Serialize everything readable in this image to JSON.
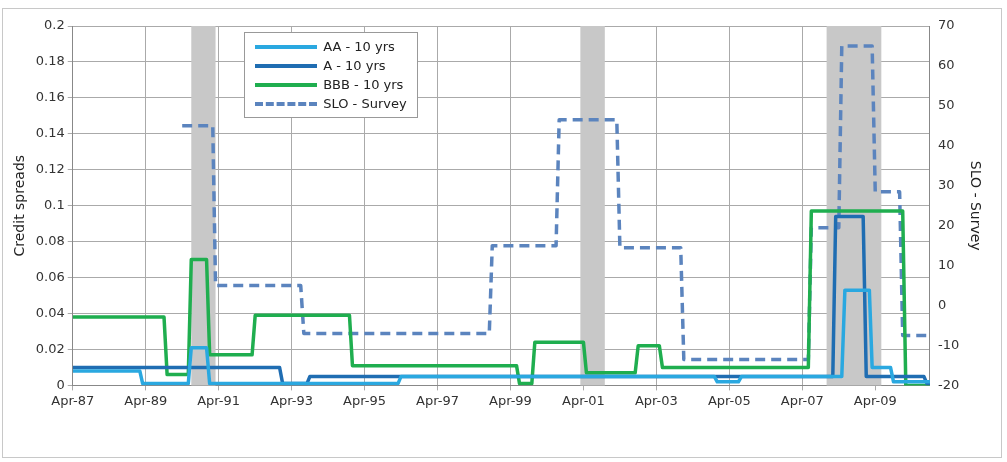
{
  "chart_data": {
    "type": "line",
    "ylabel": "Credit spreads",
    "y2label": "SLO - Survey",
    "xlim": [
      "1987-04",
      "2010-10"
    ],
    "xticks": [
      {
        "value": "1987-04",
        "label": "Apr-87"
      },
      {
        "value": "1989-04",
        "label": "Apr-89"
      },
      {
        "value": "1991-04",
        "label": "Apr-91"
      },
      {
        "value": "1993-04",
        "label": "Apr-93"
      },
      {
        "value": "1995-04",
        "label": "Apr-95"
      },
      {
        "value": "1997-04",
        "label": "Apr-97"
      },
      {
        "value": "1999-04",
        "label": "Apr-99"
      },
      {
        "value": "2001-04",
        "label": "Apr-01"
      },
      {
        "value": "2003-04",
        "label": "Apr-03"
      },
      {
        "value": "2005-04",
        "label": "Apr-05"
      },
      {
        "value": "2007-04",
        "label": "Apr-07"
      },
      {
        "value": "2009-04",
        "label": "Apr-09"
      }
    ],
    "ylim": [
      0,
      0.2
    ],
    "yticks": [
      0,
      0.02,
      0.04,
      0.06,
      0.08,
      0.1,
      0.12,
      0.14,
      0.16,
      0.18,
      0.2
    ],
    "y2lim": [
      -20,
      70
    ],
    "y2ticks": [
      -20,
      -10,
      0,
      10,
      20,
      30,
      40,
      50,
      60,
      70
    ],
    "grid": true,
    "legend": "top left",
    "marker": "none",
    "bands": [
      {
        "axis": "x",
        "from": "1990-07",
        "to": "1991-03",
        "color": "#c8c8c8"
      },
      {
        "axis": "x",
        "from": "2001-03",
        "to": "2001-11",
        "color": "#c8c8c8"
      },
      {
        "axis": "x",
        "from": "2007-12",
        "to": "2009-06",
        "color": "#c8c8c8"
      }
    ],
    "series": [
      {
        "name": "AA - 10 yrs",
        "color": "#2aa8e0",
        "line_style": "solid",
        "x": [
          "1987-04",
          "1989-02",
          "1989-03",
          "1990-06",
          "1990-07",
          "1990-12",
          "1991-01",
          "1996-03",
          "1996-04",
          "2004-11",
          "2004-12",
          "2005-07",
          "2005-08",
          "2008-05",
          "2008-06",
          "2009-02",
          "2009-03",
          "2009-09",
          "2009-10",
          "2010-10"
        ],
        "values": [
          0.008,
          0.008,
          0.001,
          0.001,
          0.021,
          0.021,
          0.001,
          0.001,
          0.005,
          0.005,
          0.002,
          0.002,
          0.005,
          0.005,
          0.053,
          0.053,
          0.01,
          0.01,
          0.002,
          0.002
        ]
      },
      {
        "name": "A - 10 yrs",
        "color": "#1f6db2",
        "line_style": "solid",
        "x": [
          "1987-04",
          "1992-12",
          "1993-01",
          "1993-09",
          "1993-10",
          "2008-02",
          "2008-03",
          "2008-12",
          "2009-01",
          "2010-08",
          "2010-09",
          "2010-10"
        ],
        "values": [
          0.01,
          0.01,
          0.001,
          0.001,
          0.005,
          0.005,
          0.094,
          0.094,
          0.005,
          0.005,
          0.001,
          0.001
        ]
      },
      {
        "name": "BBB - 10 yrs",
        "color": "#1fae4f",
        "line_style": "solid",
        "x": [
          "1987-04",
          "1989-10",
          "1989-11",
          "1990-06",
          "1990-07",
          "1990-12",
          "1991-01",
          "1992-03",
          "1992-04",
          "1994-11",
          "1994-12",
          "1999-06",
          "1999-07",
          "1999-11",
          "1999-12",
          "2001-04",
          "2001-05",
          "2002-09",
          "2002-10",
          "2003-05",
          "2003-06",
          "2007-06",
          "2007-07",
          "2010-01",
          "2010-02",
          "2010-10"
        ],
        "values": [
          0.038,
          0.038,
          0.006,
          0.006,
          0.07,
          0.07,
          0.017,
          0.017,
          0.039,
          0.039,
          0.011,
          0.011,
          0.001,
          0.001,
          0.024,
          0.024,
          0.007,
          0.007,
          0.022,
          0.022,
          0.01,
          0.01,
          0.097,
          0.097,
          0,
          0
        ]
      },
      {
        "name": "SLO - Survey",
        "color": "#5b84be",
        "line_style": "dashed",
        "axis": "y2",
        "x": [
          "1990-04",
          "1991-02",
          "1991-03",
          "1993-07",
          "1993-08",
          "1998-09",
          "1998-10",
          "2000-07",
          "2000-08",
          "2002-03",
          "2002-04",
          "2003-12",
          "2004-01",
          "2007-06",
          "2007-07",
          "2008-04",
          "2008-05",
          "2009-03",
          "2009-04",
          "2009-12",
          "2010-01",
          "2010-10"
        ],
        "values": [
          45,
          45,
          5,
          5,
          -7,
          -7,
          15,
          15,
          46.5,
          46.5,
          14.5,
          14.5,
          -13.5,
          -13.5,
          19.5,
          19.5,
          65,
          65,
          28.5,
          28.5,
          -7.5,
          -7.5
        ]
      }
    ]
  }
}
